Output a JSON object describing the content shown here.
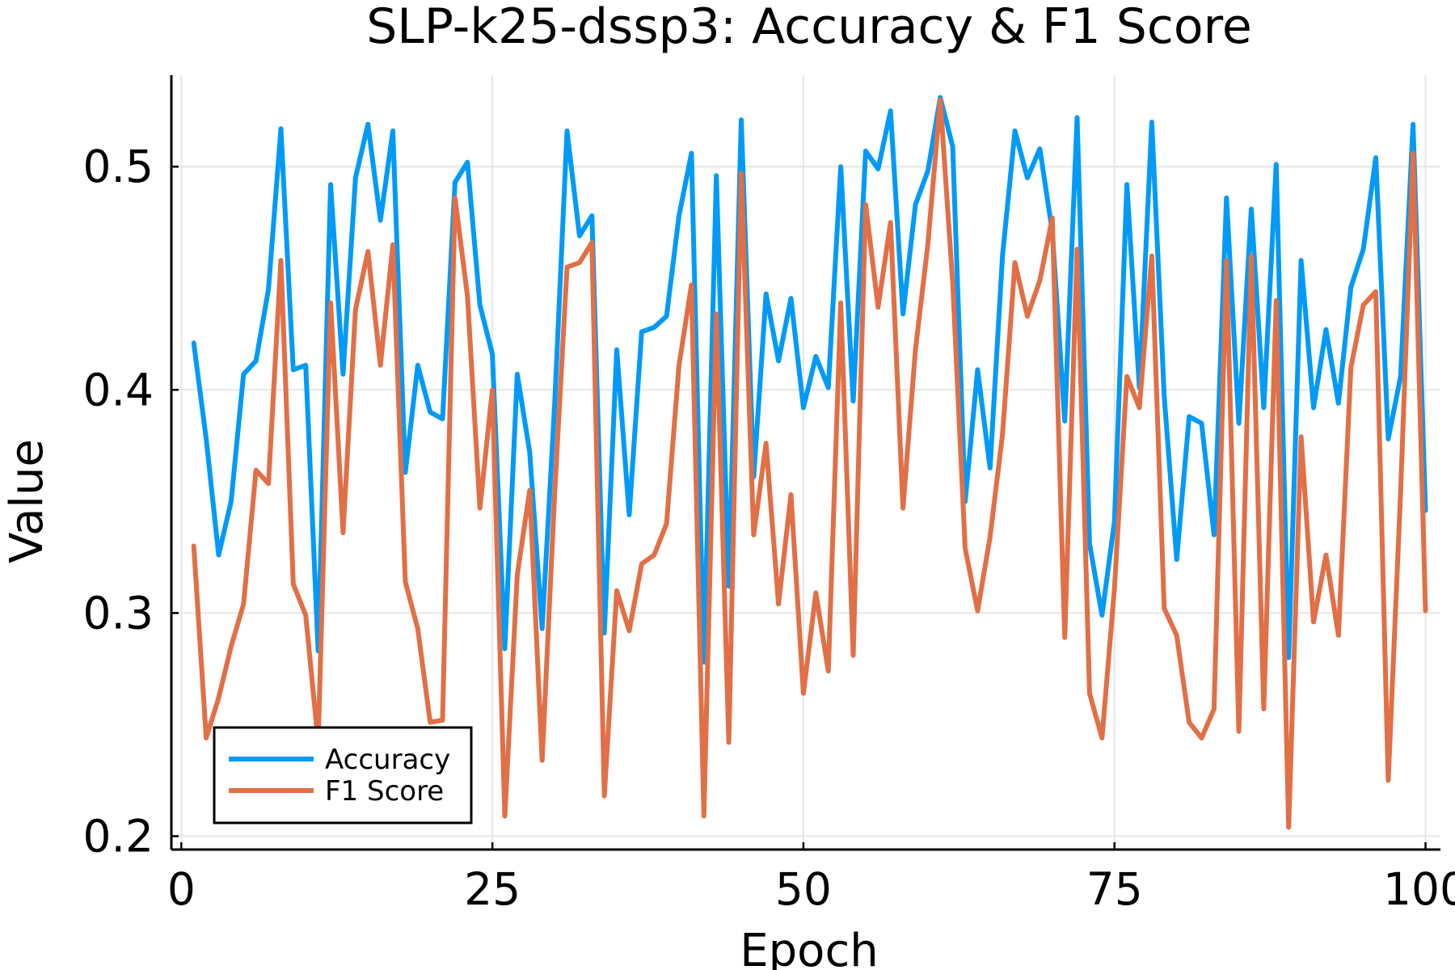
{
  "chart_data": {
    "type": "line",
    "title": "SLP-k25-dssp3: Accuracy & F1 Score",
    "xlabel": "Epoch",
    "ylabel": "Value",
    "xlim": [
      -0.8,
      101.2
    ],
    "ylim": [
      0.194,
      0.541
    ],
    "xticks": [
      0,
      25,
      50,
      75,
      100
    ],
    "xtick_labels": [
      "0",
      "25",
      "50",
      "75",
      "100"
    ],
    "yticks": [
      0.2,
      0.3,
      0.4,
      0.5
    ],
    "ytick_labels": [
      "0.2",
      "0.3",
      "0.4",
      "0.5"
    ],
    "grid": true,
    "legend_position": "bottom-left",
    "x": [
      1,
      2,
      3,
      4,
      5,
      6,
      7,
      8,
      9,
      10,
      11,
      12,
      13,
      14,
      15,
      16,
      17,
      18,
      19,
      20,
      21,
      22,
      23,
      24,
      25,
      26,
      27,
      28,
      29,
      30,
      31,
      32,
      33,
      34,
      35,
      36,
      37,
      38,
      39,
      40,
      41,
      42,
      43,
      44,
      45,
      46,
      47,
      48,
      49,
      50,
      51,
      52,
      53,
      54,
      55,
      56,
      57,
      58,
      59,
      60,
      61,
      62,
      63,
      64,
      65,
      66,
      67,
      68,
      69,
      70,
      71,
      72,
      73,
      74,
      75,
      76,
      77,
      78,
      79,
      80,
      81,
      82,
      83,
      84,
      85,
      86,
      87,
      88,
      89,
      90,
      91,
      92,
      93,
      94,
      95,
      96,
      97,
      98,
      99,
      100
    ],
    "series": [
      {
        "name": "Accuracy",
        "color": "#009af9",
        "values": [
          0.421,
          0.378,
          0.326,
          0.35,
          0.407,
          0.413,
          0.445,
          0.517,
          0.409,
          0.411,
          0.283,
          0.492,
          0.407,
          0.495,
          0.519,
          0.476,
          0.516,
          0.363,
          0.411,
          0.39,
          0.387,
          0.493,
          0.502,
          0.438,
          0.416,
          0.284,
          0.407,
          0.372,
          0.293,
          0.393,
          0.516,
          0.469,
          0.478,
          0.291,
          0.418,
          0.344,
          0.426,
          0.428,
          0.433,
          0.478,
          0.506,
          0.278,
          0.496,
          0.312,
          0.521,
          0.361,
          0.443,
          0.413,
          0.441,
          0.392,
          0.415,
          0.401,
          0.5,
          0.395,
          0.507,
          0.499,
          0.525,
          0.434,
          0.483,
          0.498,
          0.531,
          0.509,
          0.35,
          0.409,
          0.365,
          0.46,
          0.516,
          0.495,
          0.508,
          0.471,
          0.386,
          0.522,
          0.331,
          0.299,
          0.341,
          0.492,
          0.401,
          0.52,
          0.397,
          0.324,
          0.388,
          0.385,
          0.335,
          0.486,
          0.385,
          0.481,
          0.392,
          0.501,
          0.28,
          0.458,
          0.392,
          0.427,
          0.394,
          0.446,
          0.463,
          0.504,
          0.378,
          0.406,
          0.519,
          0.346
        ]
      },
      {
        "name": "F1 Score",
        "color": "#e26f46",
        "values": [
          0.33,
          0.244,
          0.262,
          0.285,
          0.304,
          0.364,
          0.358,
          0.458,
          0.313,
          0.299,
          0.242,
          0.439,
          0.336,
          0.436,
          0.462,
          0.411,
          0.465,
          0.314,
          0.293,
          0.251,
          0.252,
          0.486,
          0.442,
          0.347,
          0.4,
          0.209,
          0.317,
          0.355,
          0.234,
          0.353,
          0.455,
          0.457,
          0.466,
          0.218,
          0.31,
          0.292,
          0.322,
          0.326,
          0.34,
          0.411,
          0.447,
          0.209,
          0.434,
          0.242,
          0.497,
          0.335,
          0.376,
          0.304,
          0.353,
          0.264,
          0.309,
          0.274,
          0.439,
          0.281,
          0.483,
          0.437,
          0.475,
          0.347,
          0.418,
          0.465,
          0.53,
          0.448,
          0.329,
          0.301,
          0.334,
          0.38,
          0.457,
          0.433,
          0.449,
          0.477,
          0.289,
          0.463,
          0.264,
          0.244,
          0.311,
          0.406,
          0.392,
          0.46,
          0.302,
          0.29,
          0.251,
          0.244,
          0.257,
          0.458,
          0.247,
          0.46,
          0.257,
          0.44,
          0.204,
          0.379,
          0.296,
          0.326,
          0.29,
          0.41,
          0.438,
          0.444,
          0.225,
          0.354,
          0.506,
          0.301
        ]
      }
    ]
  }
}
